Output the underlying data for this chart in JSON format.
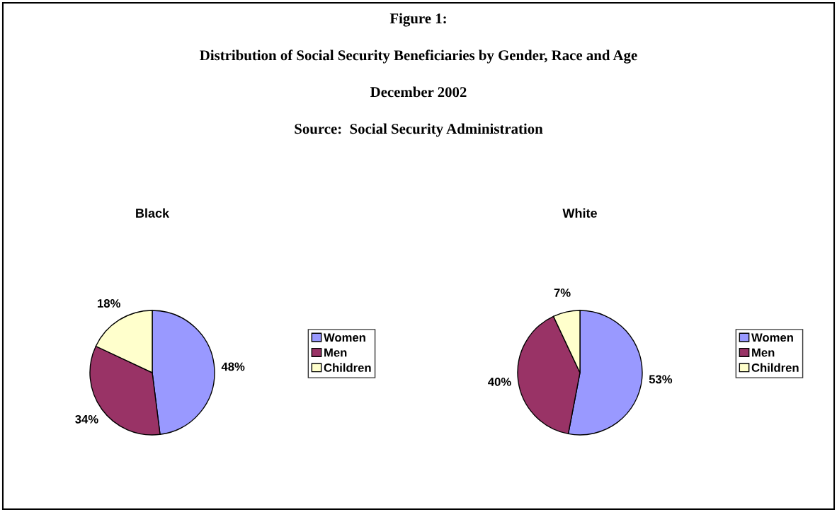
{
  "chart_data": [
    {
      "type": "pie",
      "title": "Black",
      "categories": [
        "Women",
        "Men",
        "Children"
      ],
      "values": [
        48,
        34,
        18
      ],
      "colors": [
        "#9999ff",
        "#993366",
        "#ffffcc"
      ],
      "value_labels": [
        "48%",
        "34%",
        "18%"
      ],
      "legend": "right",
      "annotations": [
        "Figure 1:",
        "Distribution of Social Security Beneficiaries by Gender, Race and Age",
        "December 2002",
        "Source:  Social Security Administration"
      ]
    },
    {
      "type": "pie",
      "title": "White",
      "categories": [
        "Women",
        "Men",
        "Children"
      ],
      "values": [
        53,
        40,
        7
      ],
      "colors": [
        "#9999ff",
        "#993366",
        "#ffffcc"
      ],
      "value_labels": [
        "53%",
        "40%",
        "7%"
      ],
      "legend": "right"
    }
  ]
}
